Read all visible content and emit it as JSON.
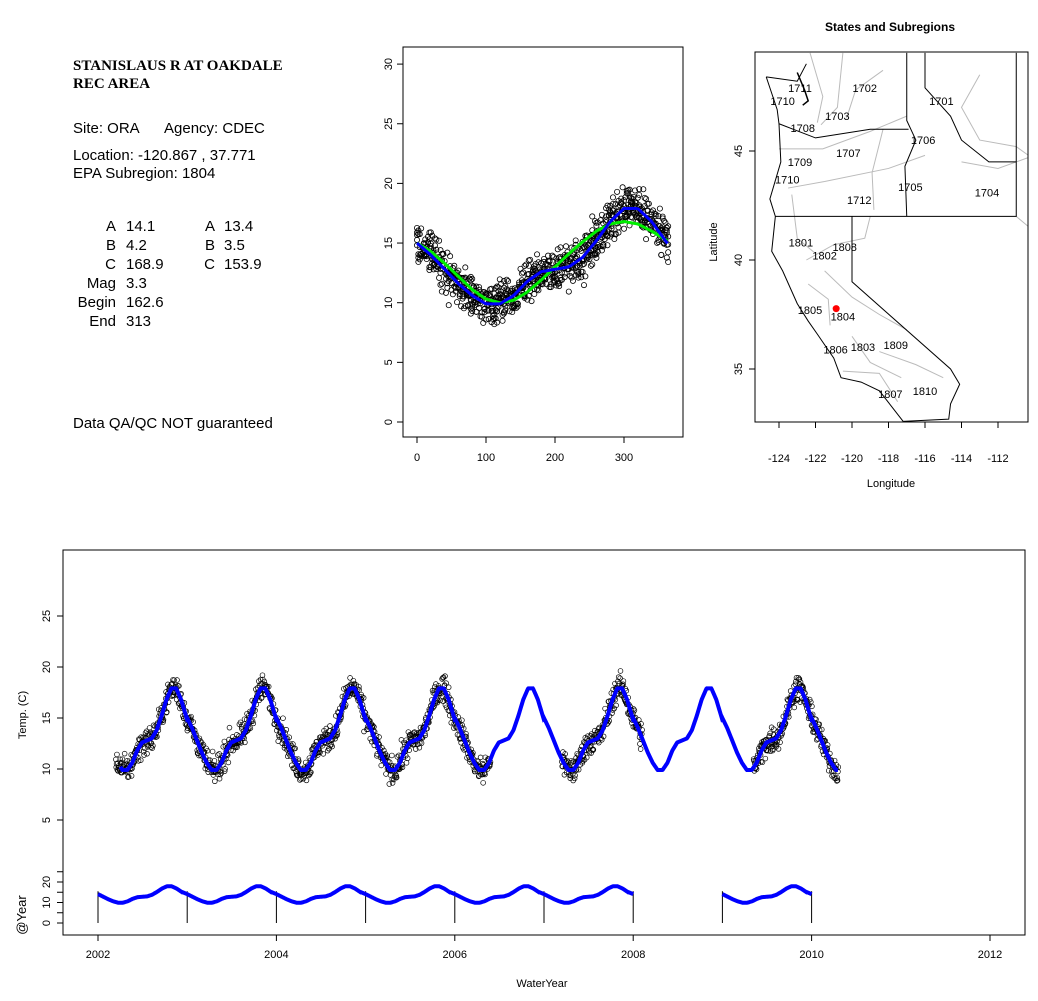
{
  "info": {
    "station_line1": "STANISLAUS R AT OAKDALE",
    "station_line2": "REC AREA",
    "site": "Site: ORA",
    "agency": "Agency: CDEC",
    "location": "Location: -120.867 , 37.771",
    "subregion": "EPA Subregion: 1804",
    "params_left": [
      {
        "k": "A",
        "v": "14.1"
      },
      {
        "k": "B",
        "v": "4.2"
      },
      {
        "k": "C",
        "v": "168.9"
      },
      {
        "k": "Mag",
        "v": "3.3"
      },
      {
        "k": "Begin",
        "v": "162.6"
      },
      {
        "k": "End",
        "v": "313"
      }
    ],
    "params_right": [
      {
        "k": "A",
        "v": "13.4"
      },
      {
        "k": "B",
        "v": "3.5"
      },
      {
        "k": "C",
        "v": "153.9"
      }
    ],
    "disclaimer": "Data QA/QC NOT guaranteed",
    "disclaimer_color": "#c0302a"
  },
  "chart_data": [
    {
      "id": "annual",
      "type": "scatter",
      "xlim": [
        0,
        365
      ],
      "ylim": [
        0,
        30
      ],
      "xticks": [
        "0",
        "100",
        "200",
        "300"
      ],
      "yticks": [
        "0",
        "5",
        "10",
        "15",
        "20",
        "25",
        "30"
      ],
      "days": [
        0,
        20,
        40,
        60,
        80,
        100,
        120,
        140,
        160,
        180,
        200,
        220,
        240,
        260,
        280,
        300,
        320,
        340,
        360
      ],
      "series": [
        {
          "name": "blue-fit",
          "color": "#0000ff",
          "values": [
            15.0,
            14.0,
            12.8,
            11.6,
            10.6,
            9.9,
            9.9,
            10.6,
            11.8,
            12.6,
            12.8,
            13.0,
            13.8,
            15.2,
            16.8,
            17.9,
            17.9,
            16.8,
            15.2
          ]
        },
        {
          "name": "green-fit",
          "color": "#00ee00",
          "values": [
            15.0,
            14.3,
            13.3,
            12.2,
            11.1,
            10.3,
            10.0,
            10.2,
            10.9,
            11.9,
            13.0,
            14.1,
            15.1,
            16.0,
            16.6,
            16.8,
            16.6,
            16.0,
            15.3
          ]
        }
      ],
      "observation_spread_c": 1.2
    },
    {
      "id": "map",
      "type": "map",
      "title": "States and Subregions",
      "xlabel": "Longitude",
      "ylabel": "Latitude",
      "xticks": [
        "-124",
        "-122",
        "-120",
        "-118",
        "-116",
        "-114",
        "-112"
      ],
      "yticks": [
        "35",
        "40",
        "45"
      ],
      "site": {
        "lon": -120.867,
        "lat": 37.771,
        "color": "#ff0000"
      },
      "regions": [
        {
          "label": "1711",
          "lon": -122.85,
          "lat": 47.9
        },
        {
          "label": "1702",
          "lon": -119.3,
          "lat": 47.9
        },
        {
          "label": "1710",
          "lon": -123.8,
          "lat": 47.3
        },
        {
          "label": "1701",
          "lon": -115.1,
          "lat": 47.3
        },
        {
          "label": "1703",
          "lon": -120.8,
          "lat": 46.6
        },
        {
          "label": "1708",
          "lon": -122.7,
          "lat": 46.05
        },
        {
          "label": "1706",
          "lon": -116.1,
          "lat": 45.5
        },
        {
          "label": "1707",
          "lon": -120.2,
          "lat": 44.9
        },
        {
          "label": "1709",
          "lon": -122.85,
          "lat": 44.5
        },
        {
          "label": "1710",
          "lon": -123.55,
          "lat": 43.7
        },
        {
          "label": "1705",
          "lon": -116.8,
          "lat": 43.35
        },
        {
          "label": "1704",
          "lon": -112.6,
          "lat": 43.1
        },
        {
          "label": "1712",
          "lon": -119.6,
          "lat": 42.75
        },
        {
          "label": "1801",
          "lon": -122.8,
          "lat": 40.8
        },
        {
          "label": "1808",
          "lon": -120.4,
          "lat": 40.6
        },
        {
          "label": "1802",
          "lon": -121.5,
          "lat": 40.2
        },
        {
          "label": "1805",
          "lon": -122.3,
          "lat": 37.7
        },
        {
          "label": "1804",
          "lon": -120.5,
          "lat": 37.4
        },
        {
          "label": "1806",
          "lon": -120.9,
          "lat": 35.9
        },
        {
          "label": "1803",
          "lon": -119.4,
          "lat": 36.0
        },
        {
          "label": "1809",
          "lon": -117.6,
          "lat": 36.1
        },
        {
          "label": "1807",
          "lon": -117.9,
          "lat": 33.85
        },
        {
          "label": "1810",
          "lon": -116.0,
          "lat": 34.0
        }
      ]
    },
    {
      "id": "timeseries",
      "type": "line",
      "xlabel": "WaterYear",
      "ylabel": "Temp. (C)",
      "ylabel2": "@Year",
      "xlim": [
        2001.6,
        2012.4
      ],
      "xticks": [
        "2002",
        "2004",
        "2006",
        "2008",
        "2010",
        "2012"
      ],
      "yticks": [
        "5",
        "10",
        "15",
        "20",
        "25"
      ],
      "yticks2": [
        "0",
        "10",
        "20"
      ],
      "fit_range": [
        2002.25,
        2010.3
      ],
      "observed_ranges": [
        [
          2002.2,
          2006.4
        ],
        [
          2007.2,
          2008.1
        ],
        [
          2009.35,
          2010.3
        ]
      ],
      "year_fit_years": [
        2002,
        2003,
        2004,
        2005,
        2006,
        2007,
        2009
      ],
      "year_marks": [
        2002,
        2003,
        2004,
        2005,
        2006,
        2007,
        2008,
        2009,
        2010
      ],
      "color": "#0000ff"
    }
  ]
}
